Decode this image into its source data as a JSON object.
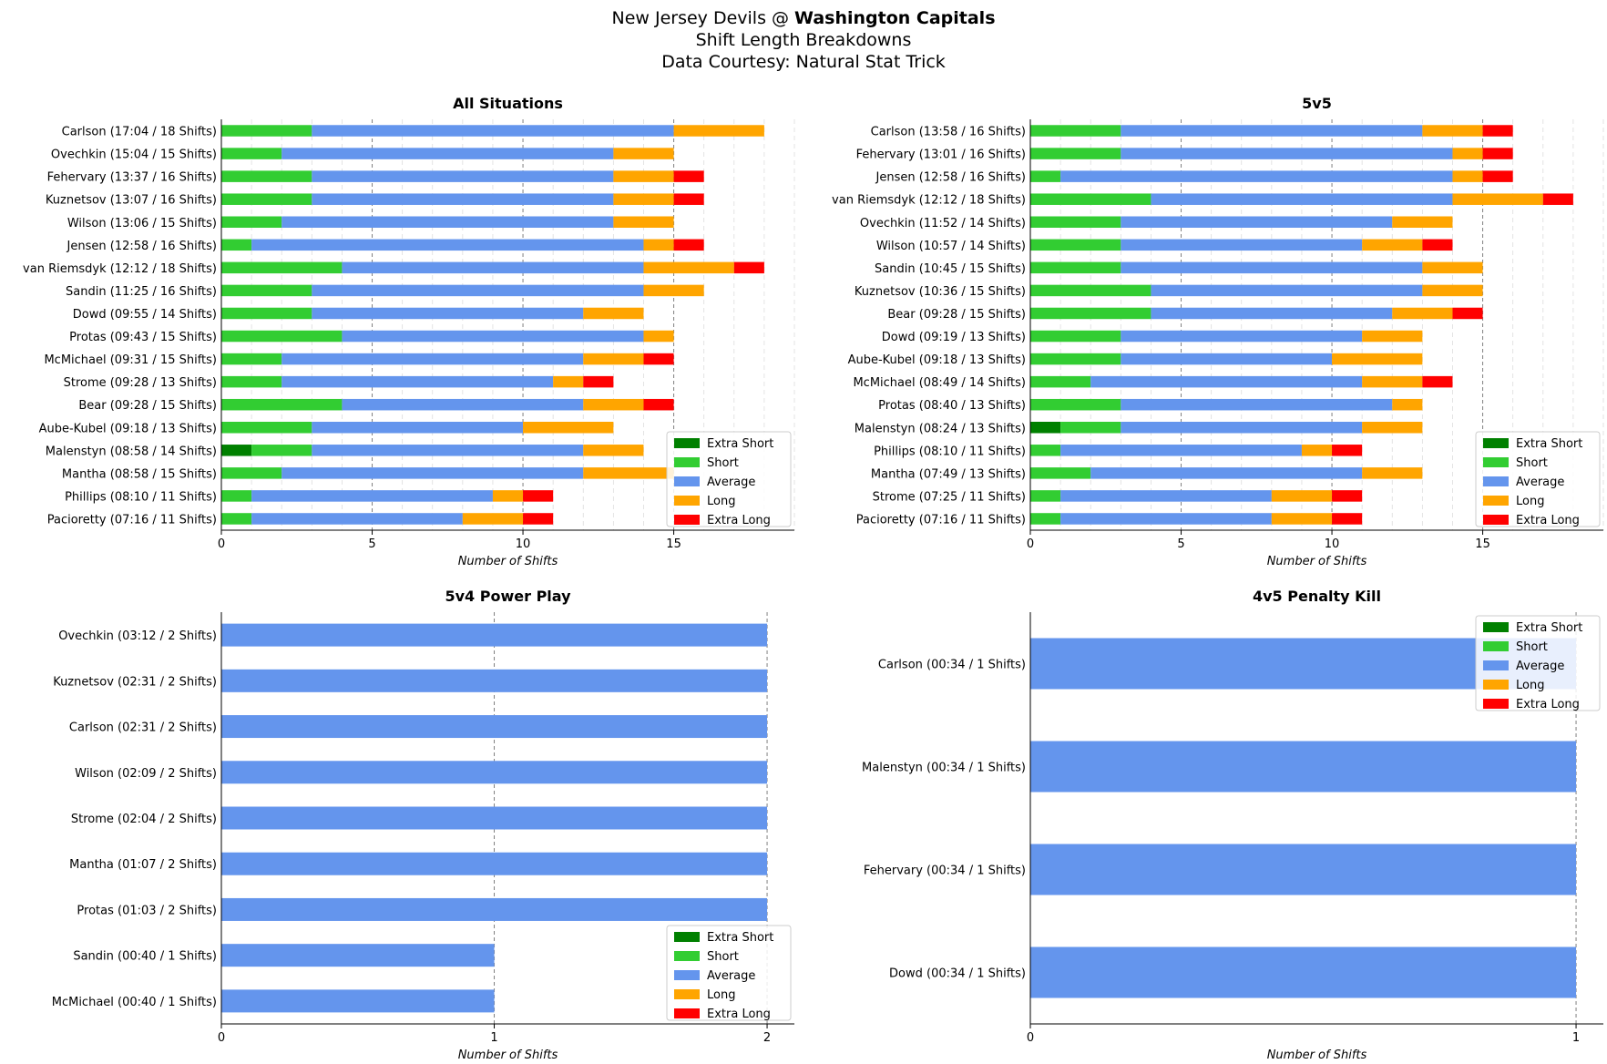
{
  "header": {
    "matchup_prefix": "New Jersey Devils @ ",
    "matchup_bold": "Washington Capitals",
    "subtitle": "Shift Length Breakdowns",
    "source": "Data Courtesy: Natural Stat Trick"
  },
  "legend": {
    "entries": [
      "Extra Short",
      "Short",
      "Average",
      "Long",
      "Extra Long"
    ],
    "colors": {
      "extra_short": "#008000",
      "short": "#32cd32",
      "average": "#6495ed",
      "long": "#ffa500",
      "extra_long": "#ff0000"
    }
  },
  "chart_data": [
    {
      "type": "bar",
      "orientation": "horizontal",
      "stacked": true,
      "title": "All Situations",
      "xlabel": "Number of Shifts",
      "xlim": [
        0,
        19
      ],
      "xticks": [
        0,
        5,
        10,
        15
      ],
      "grid": "vertical major dashed, minor light",
      "legend_position": "lower-right",
      "categories": [
        "Carlson (17:04 / 18 Shifts)",
        "Ovechkin (15:04 / 15 Shifts)",
        "Fehervary (13:37 / 16 Shifts)",
        "Kuznetsov (13:07 / 16 Shifts)",
        "Wilson (13:06 / 15 Shifts)",
        "Jensen (12:58 / 16 Shifts)",
        "van Riemsdyk (12:12 / 18 Shifts)",
        "Sandin (11:25 / 16 Shifts)",
        "Dowd (09:55 / 14 Shifts)",
        "Protas (09:43 / 15 Shifts)",
        "McMichael (09:31 / 15 Shifts)",
        "Strome (09:28 / 13 Shifts)",
        "Bear (09:28 / 15 Shifts)",
        "Aube-Kubel (09:18 / 13 Shifts)",
        "Malenstyn (08:58 / 14 Shifts)",
        "Mantha (08:58 / 15 Shifts)",
        "Phillips (08:10 / 11 Shifts)",
        "Pacioretty (07:16 / 11 Shifts)"
      ],
      "series": [
        {
          "name": "Extra Short",
          "values": [
            0,
            0,
            0,
            0,
            0,
            0,
            0,
            0,
            0,
            0,
            0,
            0,
            0,
            0,
            1,
            0,
            0,
            0
          ]
        },
        {
          "name": "Short",
          "values": [
            3,
            2,
            3,
            3,
            2,
            1,
            4,
            3,
            3,
            4,
            2,
            2,
            4,
            3,
            2,
            2,
            1,
            1
          ]
        },
        {
          "name": "Average",
          "values": [
            12,
            11,
            10,
            10,
            11,
            13,
            10,
            11,
            9,
            10,
            10,
            9,
            8,
            7,
            9,
            10,
            8,
            7
          ]
        },
        {
          "name": "Long",
          "values": [
            3,
            2,
            2,
            2,
            2,
            1,
            3,
            2,
            2,
            1,
            2,
            1,
            2,
            3,
            2,
            3,
            1,
            2
          ]
        },
        {
          "name": "Extra Long",
          "values": [
            0,
            0,
            1,
            1,
            0,
            1,
            1,
            0,
            0,
            0,
            1,
            1,
            1,
            0,
            0,
            0,
            1,
            1
          ]
        }
      ]
    },
    {
      "type": "bar",
      "orientation": "horizontal",
      "stacked": true,
      "title": "5v5",
      "xlabel": "Number of Shifts",
      "xlim": [
        0,
        19
      ],
      "xticks": [
        0,
        5,
        10,
        15
      ],
      "grid": "vertical major dashed, minor light",
      "legend_position": "lower-right",
      "categories": [
        "Carlson (13:58 / 16 Shifts)",
        "Fehervary (13:01 / 16 Shifts)",
        "Jensen (12:58 / 16 Shifts)",
        "van Riemsdyk (12:12 / 18 Shifts)",
        "Ovechkin (11:52 / 14 Shifts)",
        "Wilson (10:57 / 14 Shifts)",
        "Sandin (10:45 / 15 Shifts)",
        "Kuznetsov (10:36 / 15 Shifts)",
        "Bear (09:28 / 15 Shifts)",
        "Dowd (09:19 / 13 Shifts)",
        "Aube-Kubel (09:18 / 13 Shifts)",
        "McMichael (08:49 / 14 Shifts)",
        "Protas (08:40 / 13 Shifts)",
        "Malenstyn (08:24 / 13 Shifts)",
        "Phillips (08:10 / 11 Shifts)",
        "Mantha (07:49 / 13 Shifts)",
        "Strome (07:25 / 11 Shifts)",
        "Pacioretty (07:16 / 11 Shifts)"
      ],
      "series": [
        {
          "name": "Extra Short",
          "values": [
            0,
            0,
            0,
            0,
            0,
            0,
            0,
            0,
            0,
            0,
            0,
            0,
            0,
            1,
            0,
            0,
            0,
            0
          ]
        },
        {
          "name": "Short",
          "values": [
            3,
            3,
            1,
            4,
            3,
            3,
            3,
            4,
            4,
            3,
            3,
            2,
            3,
            2,
            1,
            2,
            1,
            1
          ]
        },
        {
          "name": "Average",
          "values": [
            10,
            11,
            13,
            10,
            9,
            8,
            10,
            9,
            8,
            8,
            7,
            9,
            9,
            8,
            8,
            9,
            7,
            7
          ]
        },
        {
          "name": "Long",
          "values": [
            2,
            1,
            1,
            3,
            2,
            2,
            2,
            2,
            2,
            2,
            3,
            2,
            1,
            2,
            1,
            2,
            2,
            2
          ]
        },
        {
          "name": "Extra Long",
          "values": [
            1,
            1,
            1,
            1,
            0,
            1,
            0,
            0,
            1,
            0,
            0,
            1,
            0,
            0,
            1,
            0,
            1,
            1
          ]
        }
      ]
    },
    {
      "type": "bar",
      "orientation": "horizontal",
      "stacked": true,
      "title": "5v4 Power Play",
      "xlabel": "Number of Shifts",
      "xlim": [
        0,
        2.1
      ],
      "xticks": [
        0,
        1,
        2
      ],
      "grid": "vertical major dashed",
      "legend_position": "lower-right",
      "categories": [
        "Ovechkin (03:12 / 2 Shifts)",
        "Kuznetsov (02:31 / 2 Shifts)",
        "Carlson (02:31 / 2 Shifts)",
        "Wilson (02:09 / 2 Shifts)",
        "Strome (02:04 / 2 Shifts)",
        "Mantha (01:07 / 2 Shifts)",
        "Protas (01:03 / 2 Shifts)",
        "Sandin (00:40 / 1 Shifts)",
        "McMichael (00:40 / 1 Shifts)"
      ],
      "series": [
        {
          "name": "Extra Short",
          "values": [
            0,
            0,
            0,
            0,
            0,
            0,
            0,
            0,
            0
          ]
        },
        {
          "name": "Short",
          "values": [
            0,
            0,
            0,
            0,
            0,
            0,
            0,
            0,
            0
          ]
        },
        {
          "name": "Average",
          "values": [
            2,
            2,
            2,
            2,
            2,
            2,
            2,
            1,
            1
          ]
        },
        {
          "name": "Long",
          "values": [
            0,
            0,
            0,
            0,
            0,
            0,
            0,
            0,
            0
          ]
        },
        {
          "name": "Extra Long",
          "values": [
            0,
            0,
            0,
            0,
            0,
            0,
            0,
            0,
            0
          ]
        }
      ]
    },
    {
      "type": "bar",
      "orientation": "horizontal",
      "stacked": true,
      "title": "4v5 Penalty Kill",
      "xlabel": "Number of Shifts",
      "xlim": [
        0,
        1.05
      ],
      "xticks": [
        0,
        1
      ],
      "grid": "vertical major dashed",
      "legend_position": "upper-right",
      "categories": [
        "Carlson (00:34 / 1 Shifts)",
        "Malenstyn (00:34 / 1 Shifts)",
        "Fehervary (00:34 / 1 Shifts)",
        "Dowd (00:34 / 1 Shifts)"
      ],
      "series": [
        {
          "name": "Extra Short",
          "values": [
            0,
            0,
            0,
            0
          ]
        },
        {
          "name": "Short",
          "values": [
            0,
            0,
            0,
            0
          ]
        },
        {
          "name": "Average",
          "values": [
            1,
            1,
            1,
            1
          ]
        },
        {
          "name": "Long",
          "values": [
            0,
            0,
            0,
            0
          ]
        },
        {
          "name": "Extra Long",
          "values": [
            0,
            0,
            0,
            0
          ]
        }
      ]
    }
  ]
}
